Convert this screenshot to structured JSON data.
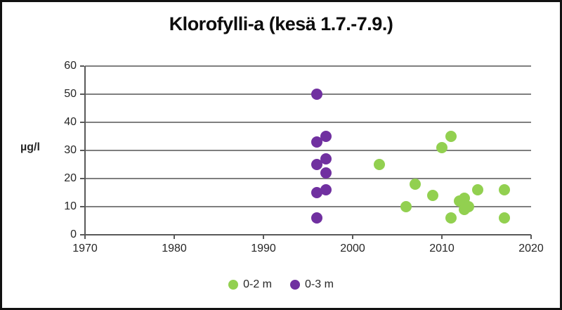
{
  "window": {
    "background": "#ffffff",
    "border_color": "#111111"
  },
  "chart_data": {
    "type": "scatter",
    "title": "Klorofylli-a (kesä 1.7.-7.9.)",
    "xlabel": "",
    "ylabel": "µg/l",
    "xlim": [
      1970,
      2020
    ],
    "ylim": [
      0,
      60
    ],
    "x_ticks": [
      1970,
      1980,
      1990,
      2000,
      2010,
      2020
    ],
    "y_ticks": [
      0,
      10,
      20,
      30,
      40,
      50,
      60
    ],
    "grid": "horizontal-only",
    "legend_position": "bottom-center",
    "series": [
      {
        "name": "0-2 m",
        "color": "#92D050",
        "points": [
          [
            2003,
            25
          ],
          [
            2006,
            10
          ],
          [
            2007,
            18
          ],
          [
            2009,
            14
          ],
          [
            2010,
            31
          ],
          [
            2011,
            35
          ],
          [
            2011,
            6
          ],
          [
            2012,
            12
          ],
          [
            2012.5,
            13
          ],
          [
            2012.5,
            9
          ],
          [
            2013,
            10
          ],
          [
            2014,
            16
          ],
          [
            2017,
            16
          ],
          [
            2017,
            6
          ]
        ]
      },
      {
        "name": "0-3 m",
        "color": "#7030A0",
        "points": [
          [
            1996,
            50
          ],
          [
            1996,
            33
          ],
          [
            1996,
            25
          ],
          [
            1996,
            15
          ],
          [
            1996,
            6
          ],
          [
            1997,
            35
          ],
          [
            1997,
            27
          ],
          [
            1997,
            22
          ],
          [
            1997,
            16
          ]
        ]
      }
    ]
  }
}
